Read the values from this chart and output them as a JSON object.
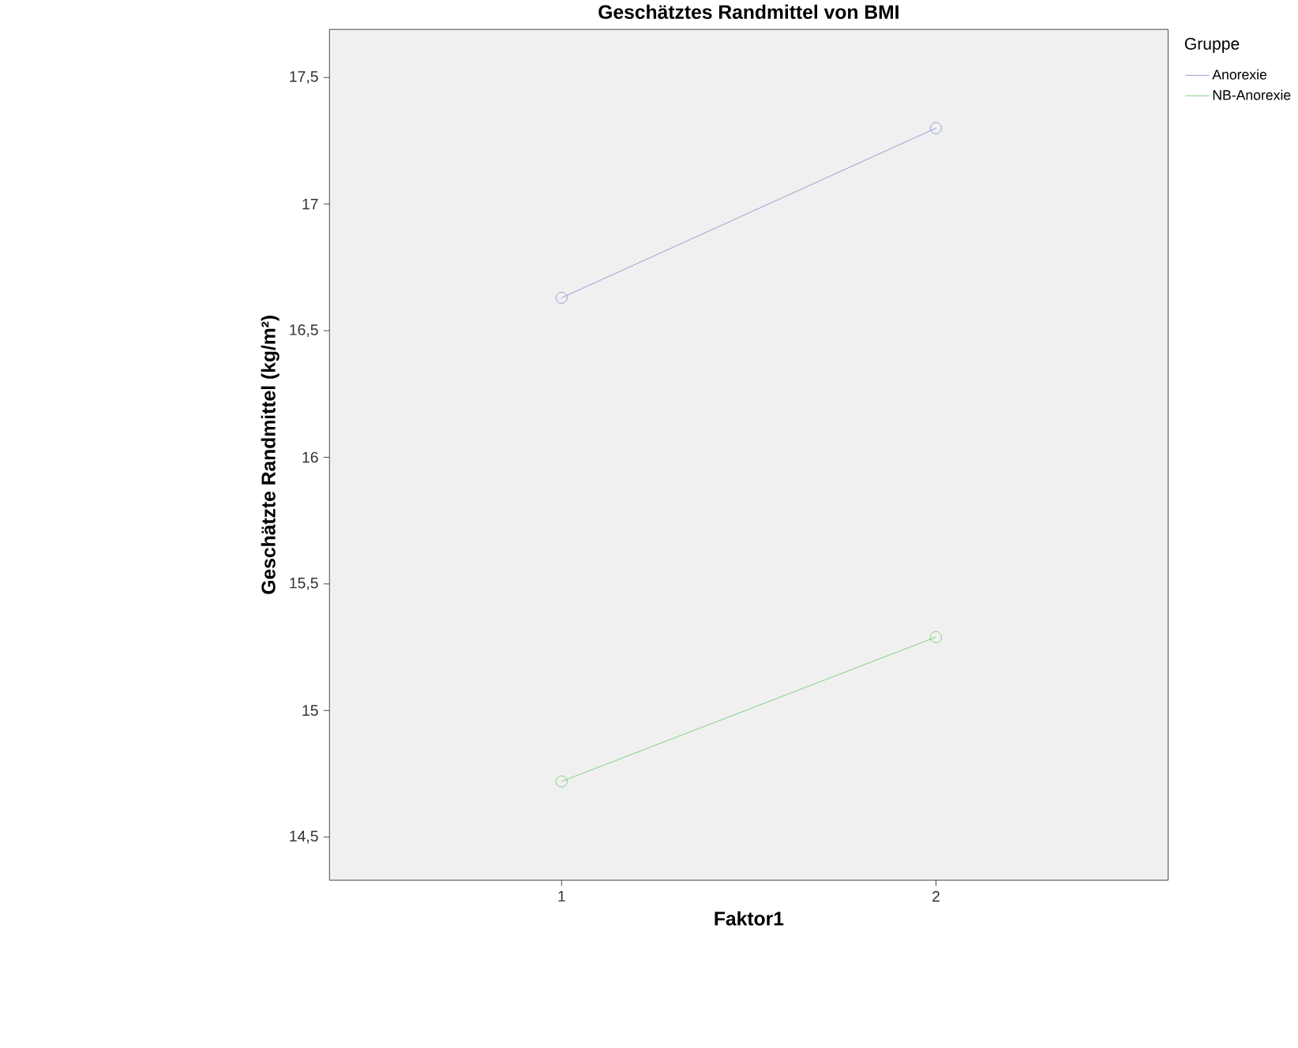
{
  "chart_data": {
    "type": "line",
    "title": "Geschätztes Randmittel von BMI",
    "xlabel": "Faktor1",
    "ylabel": "Geschätzte Randmittel  (kg/m²)",
    "legend_title": "Gruppe",
    "categories": [
      "1",
      "2"
    ],
    "series": [
      {
        "name": "Anorexie",
        "color": "#6f80c8",
        "values": [
          16.63,
          17.3
        ]
      },
      {
        "name": "NB-Anorexie",
        "color": "#55c055",
        "values": [
          14.72,
          15.29
        ]
      }
    ],
    "ylim": [
      14.33,
      17.69
    ],
    "yticks": [
      {
        "value": 14.5,
        "label": "14,5"
      },
      15,
      {
        "value": 15.5,
        "label": "15,5"
      },
      16,
      {
        "value": 16.5,
        "label": "16,5"
      },
      17,
      {
        "value": 17.5,
        "label": "17,5"
      }
    ],
    "grid": false,
    "legend": "top right",
    "marker": "circle",
    "line_style": "solid"
  }
}
